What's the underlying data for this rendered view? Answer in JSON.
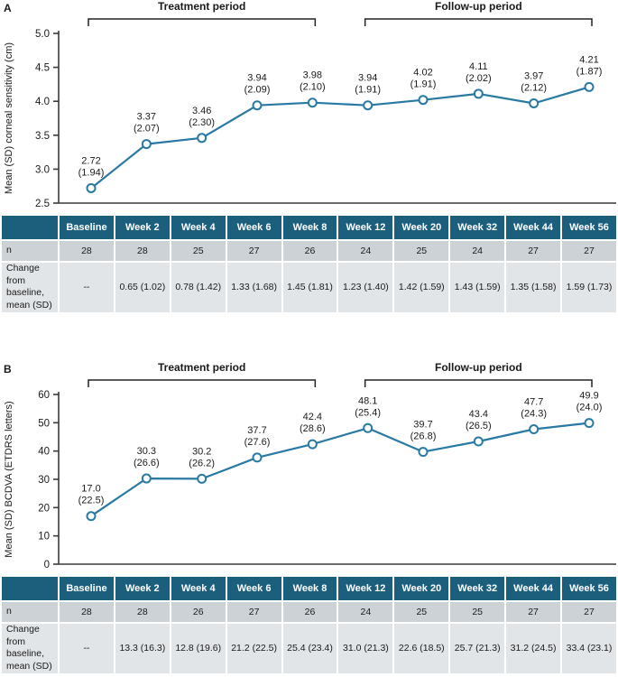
{
  "figure": {
    "accent_color": "#2879a3",
    "axis_color": "#3a3a3a",
    "text_color": "#1a1a1a",
    "table_header_bg": "#1c5f7d",
    "table_header_text": "#ffffff",
    "row_n_bg": "#ccd2d6",
    "row_change_bg": "#e2e5e8"
  },
  "panels": [
    {
      "label": "A",
      "periods": [
        {
          "label": "Treatment period",
          "from": 0,
          "to": 4
        },
        {
          "label": "Follow-up period",
          "from": 5,
          "to": 9
        }
      ],
      "chart_data": {
        "type": "line",
        "title": "",
        "xlabel": "",
        "ylabel": "Mean (SD) corneal sensitivity (cm)",
        "ylim": [
          2.5,
          5.0
        ],
        "ytick_labels": [
          "2.5",
          "3.0",
          "3.5",
          "4.0",
          "4.5",
          "5.0"
        ],
        "categories": [
          "Baseline",
          "Week 2",
          "Week 4",
          "Week 6",
          "Week 8",
          "Week 12",
          "Week 20",
          "Week 32",
          "Week 44",
          "Week 56"
        ],
        "values": [
          2.72,
          3.37,
          3.46,
          3.94,
          3.98,
          3.94,
          4.02,
          4.11,
          3.97,
          4.21
        ],
        "value_labels": [
          "2.72",
          "3.37",
          "3.46",
          "3.94",
          "3.98",
          "3.94",
          "4.02",
          "4.11",
          "3.97",
          "4.21"
        ],
        "sd_labels": [
          "(1.94)",
          "(2.07)",
          "(2.30)",
          "(2.09)",
          "(2.10)",
          "(1.91)",
          "(1.91)",
          "(2.02)",
          "(2.12)",
          "(1.87)"
        ],
        "grid": false,
        "legend_position": "none",
        "marker": "open-circle"
      },
      "table": {
        "header": [
          "",
          "Baseline",
          "Week 2",
          "Week 4",
          "Week 6",
          "Week 8",
          "Week 12",
          "Week 20",
          "Week 32",
          "Week 44",
          "Week 56"
        ],
        "rows": [
          {
            "label": "n",
            "cells": [
              "28",
              "28",
              "25",
              "27",
              "26",
              "24",
              "25",
              "24",
              "27",
              "27"
            ]
          },
          {
            "label": "Change from baseline, mean (SD)",
            "cells": [
              "--",
              "0.65 (1.02)",
              "0.78 (1.42)",
              "1.33 (1.68)",
              "1.45 (1.81)",
              "1.23 (1.40)",
              "1.42 (1.59)",
              "1.43 (1.59)",
              "1.35 (1.58)",
              "1.59 (1.73)"
            ]
          }
        ]
      }
    },
    {
      "label": "B",
      "periods": [
        {
          "label": "Treatment period",
          "from": 0,
          "to": 4
        },
        {
          "label": "Follow-up period",
          "from": 5,
          "to": 9
        }
      ],
      "chart_data": {
        "type": "line",
        "title": "",
        "xlabel": "",
        "ylabel": "Mean (SD) BCDVA (ETDRS letters)",
        "ylim": [
          0,
          60
        ],
        "ytick_labels": [
          "0",
          "10",
          "20",
          "30",
          "40",
          "50",
          "60"
        ],
        "categories": [
          "Baseline",
          "Week 2",
          "Week 4",
          "Week 6",
          "Week 8",
          "Week 12",
          "Week 20",
          "Week 32",
          "Week 44",
          "Week 56"
        ],
        "values": [
          17.0,
          30.3,
          30.2,
          37.7,
          42.4,
          48.1,
          39.7,
          43.4,
          47.7,
          49.9
        ],
        "value_labels": [
          "17.0",
          "30.3",
          "30.2",
          "37.7",
          "42.4",
          "48.1",
          "39.7",
          "43.4",
          "47.7",
          "49.9"
        ],
        "sd_labels": [
          "(22.5)",
          "(26.6)",
          "(26.2)",
          "(27.6)",
          "(28.6)",
          "(25.4)",
          "(26.8)",
          "(26.5)",
          "(24.3)",
          "(24.0)"
        ],
        "grid": false,
        "legend_position": "none",
        "marker": "open-circle"
      },
      "table": {
        "header": [
          "",
          "Baseline",
          "Week 2",
          "Week 4",
          "Week 6",
          "Week 8",
          "Week 12",
          "Week 20",
          "Week 32",
          "Week 44",
          "Week 56"
        ],
        "rows": [
          {
            "label": "n",
            "cells": [
              "28",
              "28",
              "26",
              "27",
              "26",
              "24",
              "25",
              "25",
              "27",
              "27"
            ]
          },
          {
            "label": "Change from baseline, mean (SD)",
            "cells": [
              "--",
              "13.3 (16.3)",
              "12.8 (19.6)",
              "21.2 (22.5)",
              "25.4 (23.4)",
              "31.0 (21.3)",
              "22.6 (18.5)",
              "25.7 (21.3)",
              "31.2 (24.5)",
              "33.4 (23.1)"
            ]
          }
        ]
      }
    }
  ]
}
